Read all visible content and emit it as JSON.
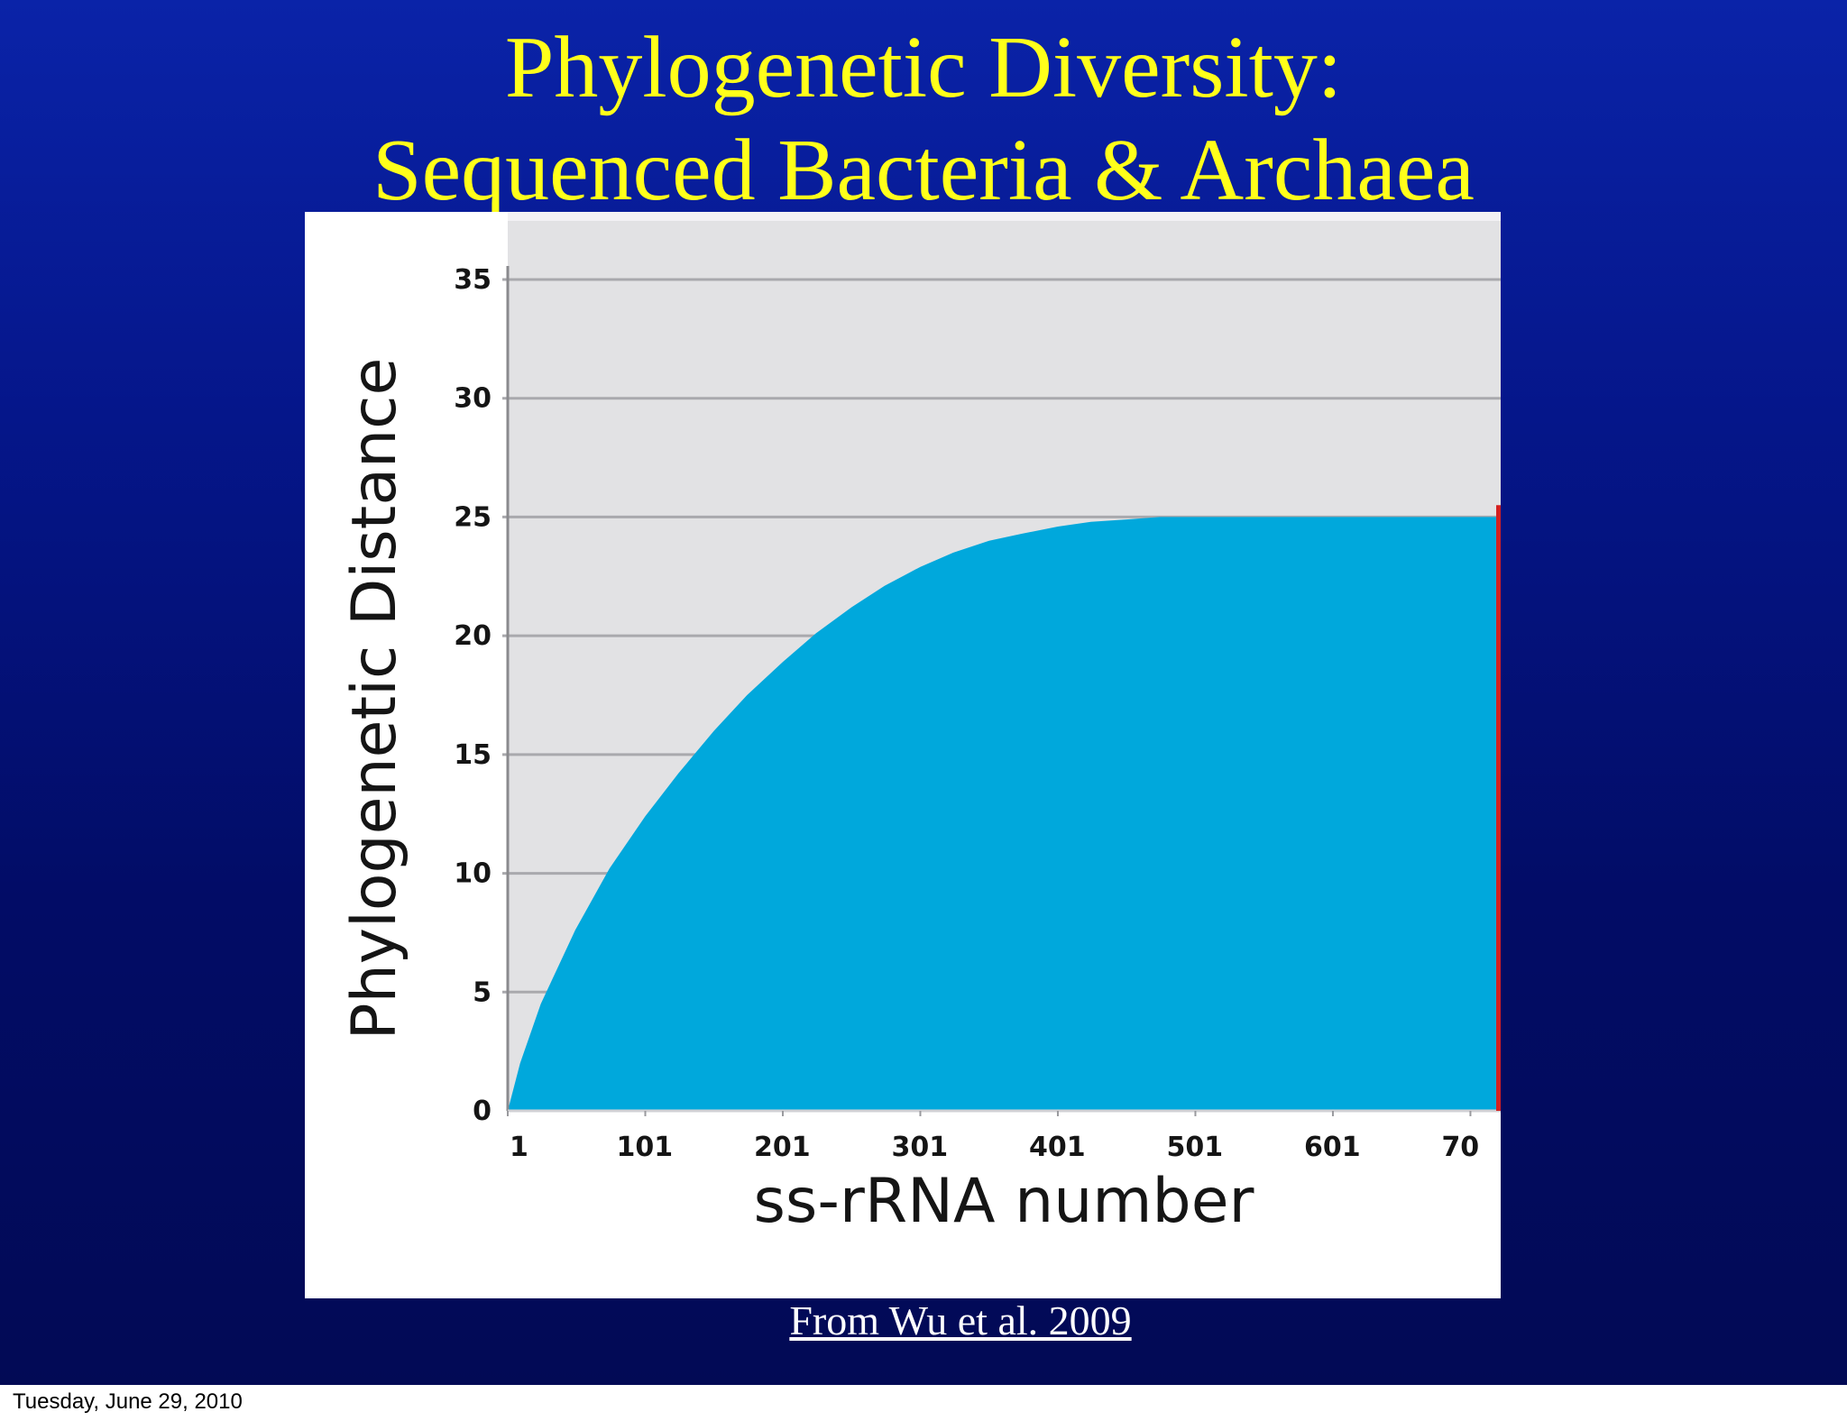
{
  "slide": {
    "title_line1": "Phylogenetic Diversity:",
    "title_line2": "Sequenced Bacteria & Archaea",
    "citation": "From Wu et al. 2009",
    "footer_date": "Tuesday, June 29, 2010",
    "background_top_color": "#0a23a8",
    "background_bottom_color": "#020a55",
    "title_color": "#ffff1a"
  },
  "chart_data": {
    "type": "area",
    "title": "",
    "xlabel": "ss-rRNA number",
    "ylabel": "Phylogenetic Distance",
    "x_tick_labels": [
      "1",
      "101",
      "201",
      "301",
      "401",
      "501",
      "601",
      "70"
    ],
    "y_tick_labels": [
      "0",
      "5",
      "10",
      "15",
      "20",
      "25",
      "30",
      "35"
    ],
    "xlim": [
      1,
      723
    ],
    "ylim": [
      0,
      35
    ],
    "grid": true,
    "fill_color": "#00a8dc",
    "plot_background": "#e2e2e4",
    "marker_line_color": "#d42020",
    "series": [
      {
        "x": [
          1,
          10,
          25,
          50,
          75,
          101,
          125,
          151,
          175,
          201,
          225,
          251,
          275,
          301,
          325,
          351,
          375,
          401,
          425,
          451,
          475,
          501,
          550,
          601,
          650,
          700,
          723
        ],
        "values": [
          0,
          2.0,
          4.5,
          7.6,
          10.2,
          12.4,
          14.2,
          16.0,
          17.5,
          18.9,
          20.1,
          21.2,
          22.1,
          22.9,
          23.5,
          24.0,
          24.3,
          24.6,
          24.8,
          24.9,
          25.0,
          25.0,
          25.0,
          25.0,
          25.0,
          25.0,
          25.0
        ]
      }
    ]
  }
}
